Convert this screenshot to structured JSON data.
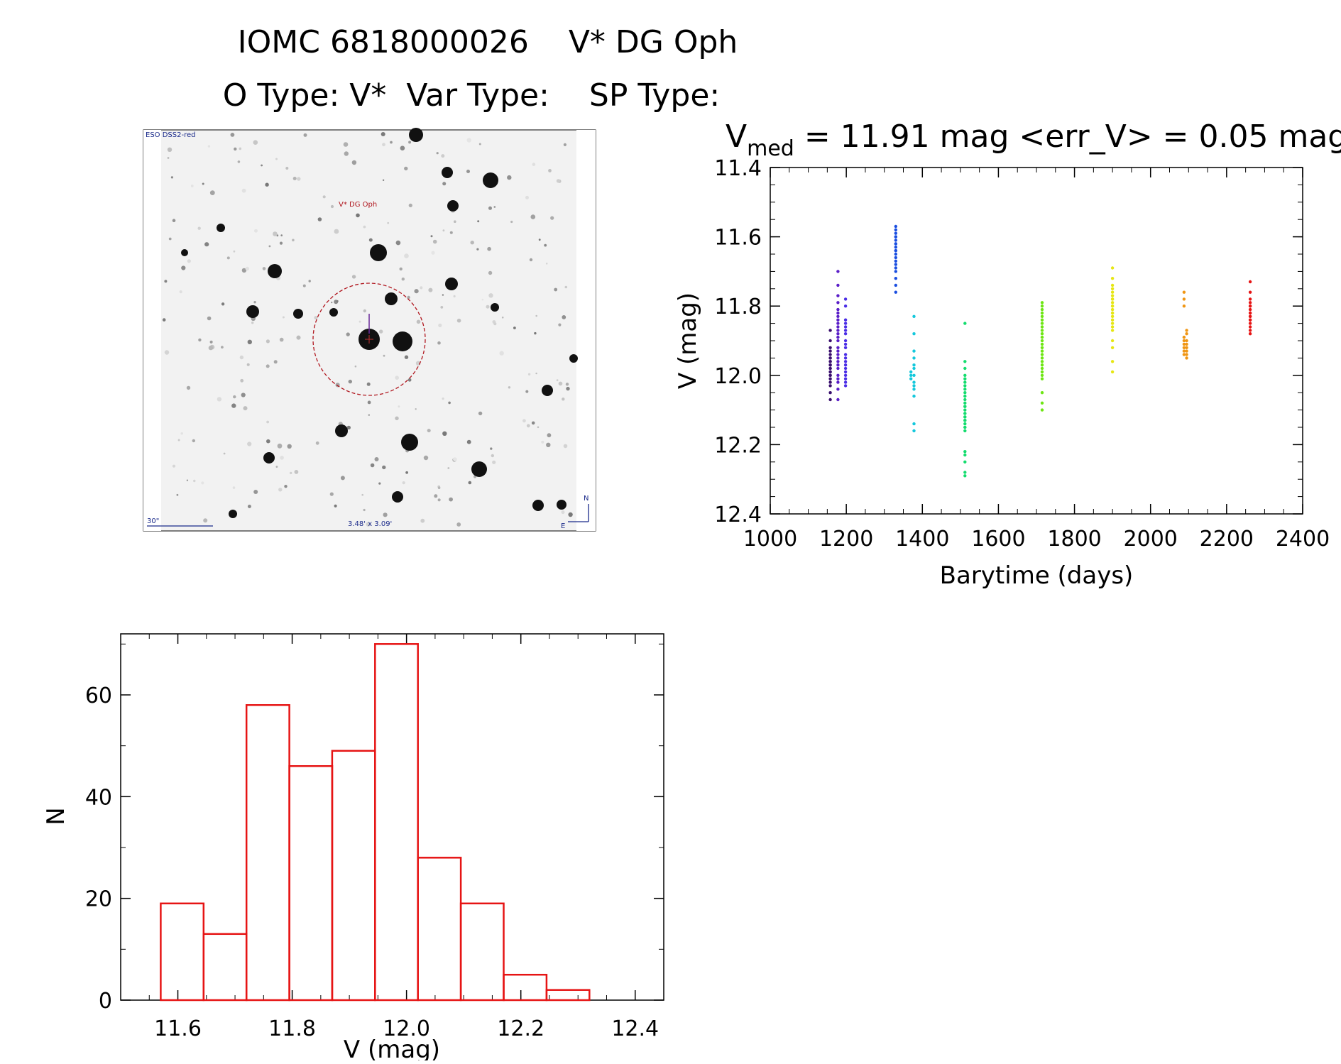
{
  "header": {
    "title": "IOMC 6818000026    V* DG Oph",
    "subtitle": "O Type: V*  Var Type:    SP Type:"
  },
  "sky_image": {
    "survey": "ESO DSS2-red",
    "target_label": "V* DG Oph",
    "scale_label": "30\"",
    "size_label": "3.48' x 3.09'",
    "north": "N",
    "east": "E"
  },
  "chart_data": [
    {
      "type": "scatter",
      "name": "light-curve",
      "title_main": "V",
      "title_sub": "med",
      "title_rest": " = 11.91 mag <err_V> = 0.05 mag",
      "xlabel": "Barytime (days)",
      "ylabel": "V (mag)",
      "xlim": [
        1000,
        2400
      ],
      "ylim": [
        12.4,
        11.4
      ],
      "xticks": [
        "1000",
        "1200",
        "1400",
        "1600",
        "1800",
        "2000",
        "2200",
        "2400"
      ],
      "yticks": [
        "11.4",
        "11.6",
        "11.8",
        "12.0",
        "12.2",
        "12.4"
      ],
      "series": [
        {
          "name": "g1",
          "color": "#3a0f6e",
          "x": [
            1158,
            1158,
            1158,
            1158,
            1158,
            1158,
            1158,
            1158,
            1158,
            1158,
            1158,
            1158,
            1158,
            1158,
            1158,
            1158,
            1158,
            1158,
            1158,
            1158,
            1158,
            1158
          ],
          "y": [
            11.87,
            11.9,
            11.92,
            11.94,
            11.95,
            11.96,
            11.97,
            11.98,
            11.99,
            12.0,
            12.01,
            12.02,
            12.03,
            12.05,
            12.07,
            11.93,
            11.96,
            11.97,
            11.99,
            12.0,
            11.98,
            11.95
          ]
        },
        {
          "name": "g2",
          "color": "#5a1ec8",
          "x": [
            1178,
            1178,
            1178,
            1178,
            1178,
            1178,
            1178,
            1178,
            1178,
            1178,
            1178,
            1178,
            1178,
            1178,
            1178,
            1178,
            1178,
            1178,
            1178,
            1178,
            1178,
            1178,
            1178,
            1178,
            1178,
            1178
          ],
          "y": [
            11.7,
            11.74,
            11.77,
            11.79,
            11.81,
            11.83,
            11.85,
            11.86,
            11.88,
            11.9,
            11.92,
            11.94,
            11.96,
            11.98,
            12.0,
            12.02,
            12.04,
            12.07,
            11.84,
            11.87,
            11.89,
            11.93,
            11.97,
            12.01,
            11.82,
            11.95
          ]
        },
        {
          "name": "g3",
          "color": "#4b2ee6",
          "x": [
            1198,
            1198,
            1198,
            1198,
            1198,
            1198,
            1198,
            1198,
            1198,
            1198,
            1198,
            1198,
            1198,
            1198,
            1198,
            1198,
            1198,
            1198,
            1198,
            1198
          ],
          "y": [
            11.78,
            11.8,
            11.84,
            11.85,
            11.86,
            11.87,
            11.88,
            11.9,
            11.92,
            11.94,
            11.96,
            11.97,
            11.98,
            11.99,
            12.0,
            12.01,
            12.02,
            12.03,
            11.95,
            11.91
          ]
        },
        {
          "name": "g4",
          "color": "#1a4ee0",
          "x": [
            1330,
            1330,
            1330,
            1330,
            1330,
            1330,
            1330,
            1330,
            1330,
            1330,
            1330,
            1330,
            1330,
            1330,
            1330,
            1330,
            1330,
            1330,
            1330,
            1330
          ],
          "y": [
            11.57,
            11.58,
            11.59,
            11.6,
            11.61,
            11.62,
            11.63,
            11.64,
            11.65,
            11.66,
            11.67,
            11.68,
            11.69,
            11.7,
            11.72,
            11.74,
            11.76,
            11.6,
            11.62,
            11.64
          ]
        },
        {
          "name": "g5",
          "color": "#14c8dc",
          "x": [
            1370,
            1370,
            1370,
            1378,
            1378,
            1378,
            1378,
            1378,
            1378,
            1378,
            1378,
            1378,
            1378,
            1378,
            1378,
            1378
          ],
          "y": [
            11.99,
            12.0,
            12.01,
            11.83,
            11.88,
            11.93,
            11.95,
            11.98,
            12.0,
            12.02,
            12.03,
            12.04,
            12.06,
            12.14,
            12.16,
            11.97
          ]
        },
        {
          "name": "g6",
          "color": "#14dc6e",
          "x": [
            1512,
            1512,
            1512,
            1512,
            1512,
            1512,
            1512,
            1512,
            1512,
            1512,
            1512,
            1512,
            1512,
            1512,
            1512,
            1512,
            1512,
            1512,
            1512,
            1512,
            1512,
            1512,
            1512,
            1512,
            1512,
            1512,
            1512,
            1512,
            1512,
            1512
          ],
          "y": [
            11.85,
            11.96,
            11.98,
            12.0,
            12.02,
            12.04,
            12.05,
            12.06,
            12.07,
            12.08,
            12.09,
            12.1,
            12.11,
            12.12,
            12.13,
            12.14,
            12.15,
            12.16,
            12.22,
            12.23,
            12.25,
            12.28,
            12.29,
            12.01,
            12.03,
            12.09,
            12.11,
            12.13,
            12.15,
            12.12
          ]
        },
        {
          "name": "g7",
          "color": "#6ee614",
          "x": [
            1715,
            1715,
            1715,
            1715,
            1715,
            1715,
            1715,
            1715,
            1715,
            1715,
            1715,
            1715,
            1715,
            1715,
            1715,
            1715,
            1715,
            1715,
            1715,
            1715,
            1715,
            1715,
            1715,
            1715,
            1715,
            1715
          ],
          "y": [
            11.79,
            11.8,
            11.81,
            11.82,
            11.83,
            11.84,
            11.85,
            11.86,
            11.87,
            11.88,
            11.89,
            11.9,
            11.91,
            11.92,
            11.93,
            11.94,
            11.95,
            11.96,
            11.97,
            11.98,
            11.99,
            12.0,
            12.01,
            12.05,
            12.08,
            12.1
          ]
        },
        {
          "name": "g8",
          "color": "#e6e614",
          "x": [
            1900,
            1900,
            1900,
            1900,
            1900,
            1900,
            1900,
            1900,
            1900,
            1900,
            1900,
            1900,
            1900,
            1900,
            1900,
            1900,
            1900,
            1900,
            1900,
            1900,
            1900,
            1900,
            1900
          ],
          "y": [
            11.69,
            11.72,
            11.74,
            11.75,
            11.76,
            11.77,
            11.78,
            11.79,
            11.8,
            11.81,
            11.82,
            11.83,
            11.84,
            11.85,
            11.87,
            11.9,
            11.92,
            11.96,
            11.99,
            11.78,
            11.8,
            11.82,
            11.86
          ]
        },
        {
          "name": "g9",
          "color": "#f09614",
          "x": [
            2088,
            2088,
            2088,
            2088,
            2088,
            2088,
            2088,
            2088,
            2088,
            2095,
            2095,
            2095,
            2095,
            2095,
            2095,
            2095,
            2095
          ],
          "y": [
            11.76,
            11.78,
            11.8,
            11.9,
            11.91,
            11.92,
            11.93,
            11.94,
            11.89,
            11.87,
            11.88,
            11.9,
            11.91,
            11.92,
            11.93,
            11.94,
            11.95
          ]
        },
        {
          "name": "g10",
          "color": "#e61414",
          "x": [
            2262,
            2262,
            2262,
            2262,
            2262,
            2262,
            2262,
            2262,
            2262,
            2262,
            2262,
            2262,
            2262,
            2262,
            2262,
            2262,
            2262
          ],
          "y": [
            11.73,
            11.76,
            11.78,
            11.79,
            11.8,
            11.81,
            11.82,
            11.83,
            11.84,
            11.85,
            11.86,
            11.87,
            11.88,
            11.8,
            11.82,
            11.84,
            11.83
          ]
        }
      ]
    },
    {
      "type": "bar",
      "name": "histogram",
      "xlabel": "V (mag)",
      "ylabel": "N",
      "xlim": [
        11.5,
        12.45
      ],
      "ylim": [
        0,
        72
      ],
      "xticks": [
        "11.6",
        "11.8",
        "12.0",
        "12.2",
        "12.4"
      ],
      "yticks": [
        "0",
        "20",
        "40",
        "60"
      ],
      "color": "#e61414",
      "bins": [
        {
          "lo": 11.57,
          "hi": 11.645,
          "count": 19
        },
        {
          "lo": 11.645,
          "hi": 11.72,
          "count": 13
        },
        {
          "lo": 11.72,
          "hi": 11.795,
          "count": 58
        },
        {
          "lo": 11.795,
          "hi": 11.87,
          "count": 46
        },
        {
          "lo": 11.87,
          "hi": 11.945,
          "count": 49
        },
        {
          "lo": 11.945,
          "hi": 12.02,
          "count": 70
        },
        {
          "lo": 12.02,
          "hi": 12.095,
          "count": 28
        },
        {
          "lo": 12.095,
          "hi": 12.17,
          "count": 19
        },
        {
          "lo": 12.17,
          "hi": 12.245,
          "count": 5
        },
        {
          "lo": 12.245,
          "hi": 12.32,
          "count": 2
        }
      ]
    }
  ]
}
